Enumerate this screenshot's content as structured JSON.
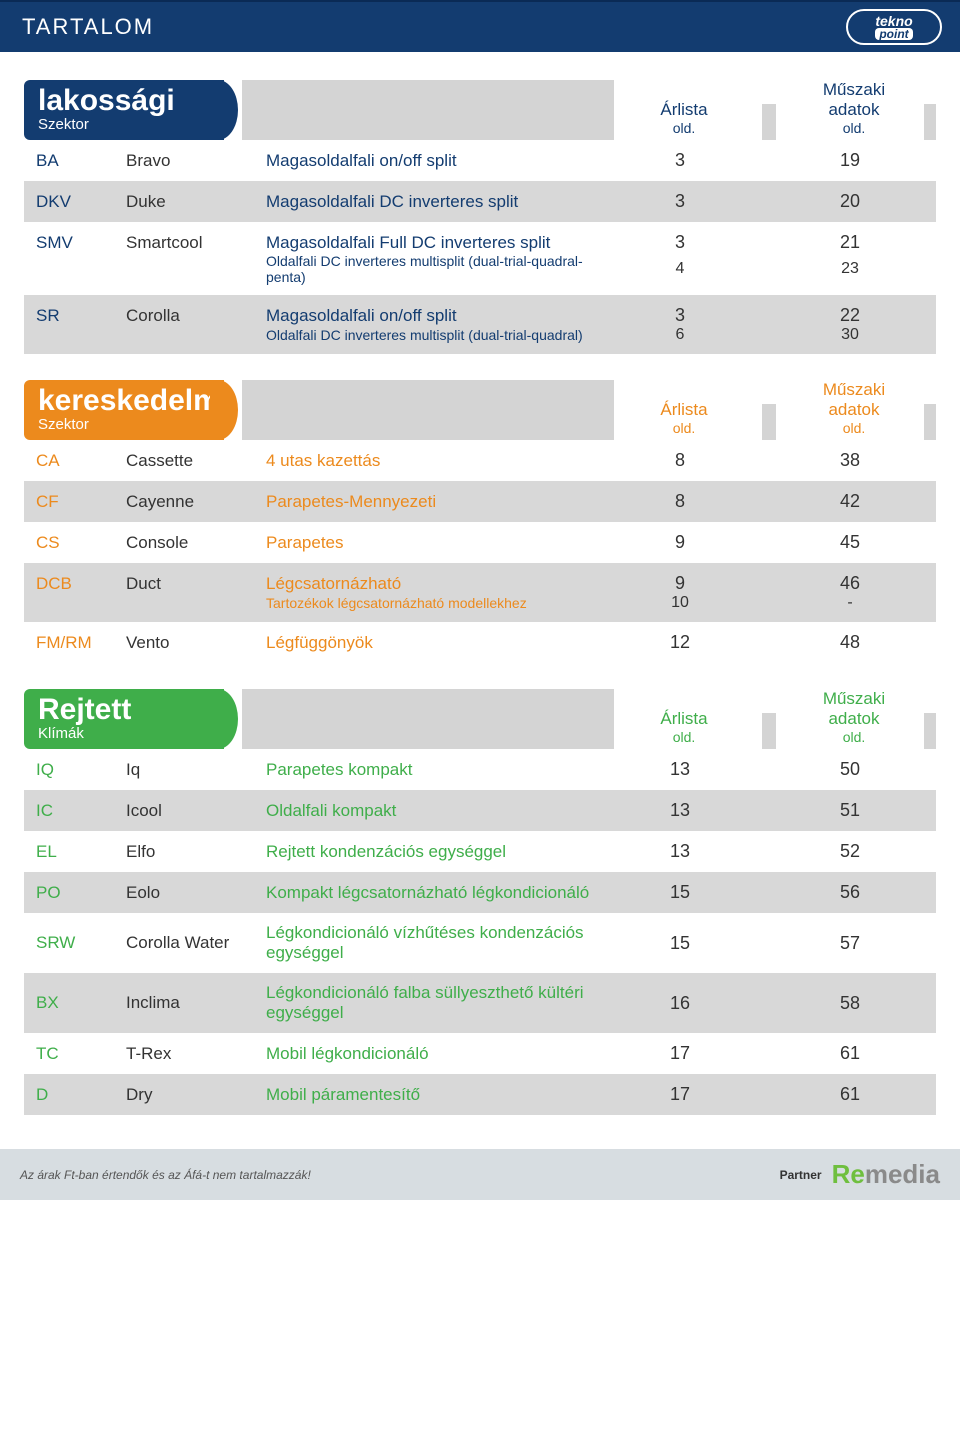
{
  "topbar": {
    "title": "TARTALOM",
    "logo_top": "tekno",
    "logo_bottom": "point"
  },
  "col_labels": {
    "arlista": "Árlista",
    "arlista_sub": "old.",
    "muszaki": "Műszaki adatok",
    "muszaki_sub": "old."
  },
  "sections": {
    "lakossagi": {
      "badge_big": "lakossági",
      "badge_sub": "Szektor",
      "badge_bg": "#133c70",
      "text_color": "#133c70",
      "head_color": "#133c70"
    },
    "kereskedelmi": {
      "badge_big": "kereskedelmi",
      "badge_sub": "Szektor",
      "badge_bg": "#ec8a1d",
      "text_color": "#ec8a1d",
      "head_color": "#ec8a1d"
    },
    "rejtett": {
      "badge_big": "Rejtett",
      "badge_sub": "Klímák",
      "badge_bg": "#3fae4a",
      "text_color": "#3fae4a",
      "head_color": "#3fae4a"
    }
  },
  "rows_lakossagi": [
    {
      "code": "BA",
      "name": "Bravo",
      "desc": "Magasoldalfali on/off split",
      "p1": "3",
      "p2": "19",
      "shade": false
    },
    {
      "code": "DKV",
      "name": "Duke",
      "desc": "Magasoldalfali DC inverteres split",
      "p1": "3",
      "p2": "20",
      "shade": true
    },
    {
      "code": "SMV",
      "name": "Smartcool",
      "desc": "Magasoldalfali Full DC inverteres split",
      "p1": "3",
      "p2": "21",
      "shade": false,
      "sub": {
        "desc": "Oldalfali DC inverteres multisplit (dual-trial-quadral-penta)",
        "p1": "4",
        "p2": "23"
      }
    },
    {
      "code": "SR",
      "name": "Corolla",
      "desc": "Magasoldalfali on/off split",
      "p1": "3",
      "p2": "22",
      "shade": true,
      "sub": {
        "desc": "Oldalfali DC inverteres multisplit (dual-trial-quadral)",
        "p1": "6",
        "p2": "30"
      }
    }
  ],
  "rows_kereskedelmi": [
    {
      "code": "CA",
      "name": "Cassette",
      "desc": "4 utas kazettás",
      "p1": "8",
      "p2": "38",
      "shade": false
    },
    {
      "code": "CF",
      "name": "Cayenne",
      "desc": "Parapetes-Mennyezeti",
      "p1": "8",
      "p2": "42",
      "shade": true
    },
    {
      "code": "CS",
      "name": "Console",
      "desc": "Parapetes",
      "p1": "9",
      "p2": "45",
      "shade": false
    },
    {
      "code": "DCB",
      "name": "Duct",
      "desc": "Légcsatornázható",
      "p1": "9",
      "p2": "46",
      "shade": true,
      "sub": {
        "desc": "Tartozékok légcsatornázható modellekhez",
        "p1": "10",
        "p2": "-"
      }
    },
    {
      "code": "FM/RM",
      "name": "Vento",
      "desc": "Légfüggönyök",
      "p1": "12",
      "p2": "48",
      "shade": false
    }
  ],
  "rows_rejtett": [
    {
      "code": "IQ",
      "name": "Iq",
      "desc": "Parapetes kompakt",
      "p1": "13",
      "p2": "50",
      "shade": false
    },
    {
      "code": "IC",
      "name": "Icool",
      "desc": "Oldalfali kompakt",
      "p1": "13",
      "p2": "51",
      "shade": true
    },
    {
      "code": "EL",
      "name": "Elfo",
      "desc": "Rejtett kondenzációs egységgel",
      "p1": "13",
      "p2": "52",
      "shade": false
    },
    {
      "code": "PO",
      "name": "Eolo",
      "desc": "Kompakt légcsatornázható légkondicionáló",
      "p1": "15",
      "p2": "56",
      "shade": true
    },
    {
      "code": "SRW",
      "name": "Corolla Water",
      "desc": "Légkondicionáló vízhűtéses kondenzációs egységgel",
      "p1": "15",
      "p2": "57",
      "shade": false
    },
    {
      "code": "BX",
      "name": "Inclima",
      "desc": "Légkondicionáló falba süllyeszthető kültéri egységgel",
      "p1": "16",
      "p2": "58",
      "shade": true
    },
    {
      "code": "TC",
      "name": "T-Rex",
      "desc": "Mobil légkondicionáló",
      "p1": "17",
      "p2": "61",
      "shade": false
    },
    {
      "code": "D",
      "name": "Dry",
      "desc": "Mobil páramentesítő",
      "p1": "17",
      "p2": "61",
      "shade": true
    }
  ],
  "footer": {
    "note": "Az árak Ft-ban értendők és az Áfá-t nem tartalmazzák!",
    "partner": "Partner",
    "brand_green": "Re",
    "brand_grey": "media"
  }
}
